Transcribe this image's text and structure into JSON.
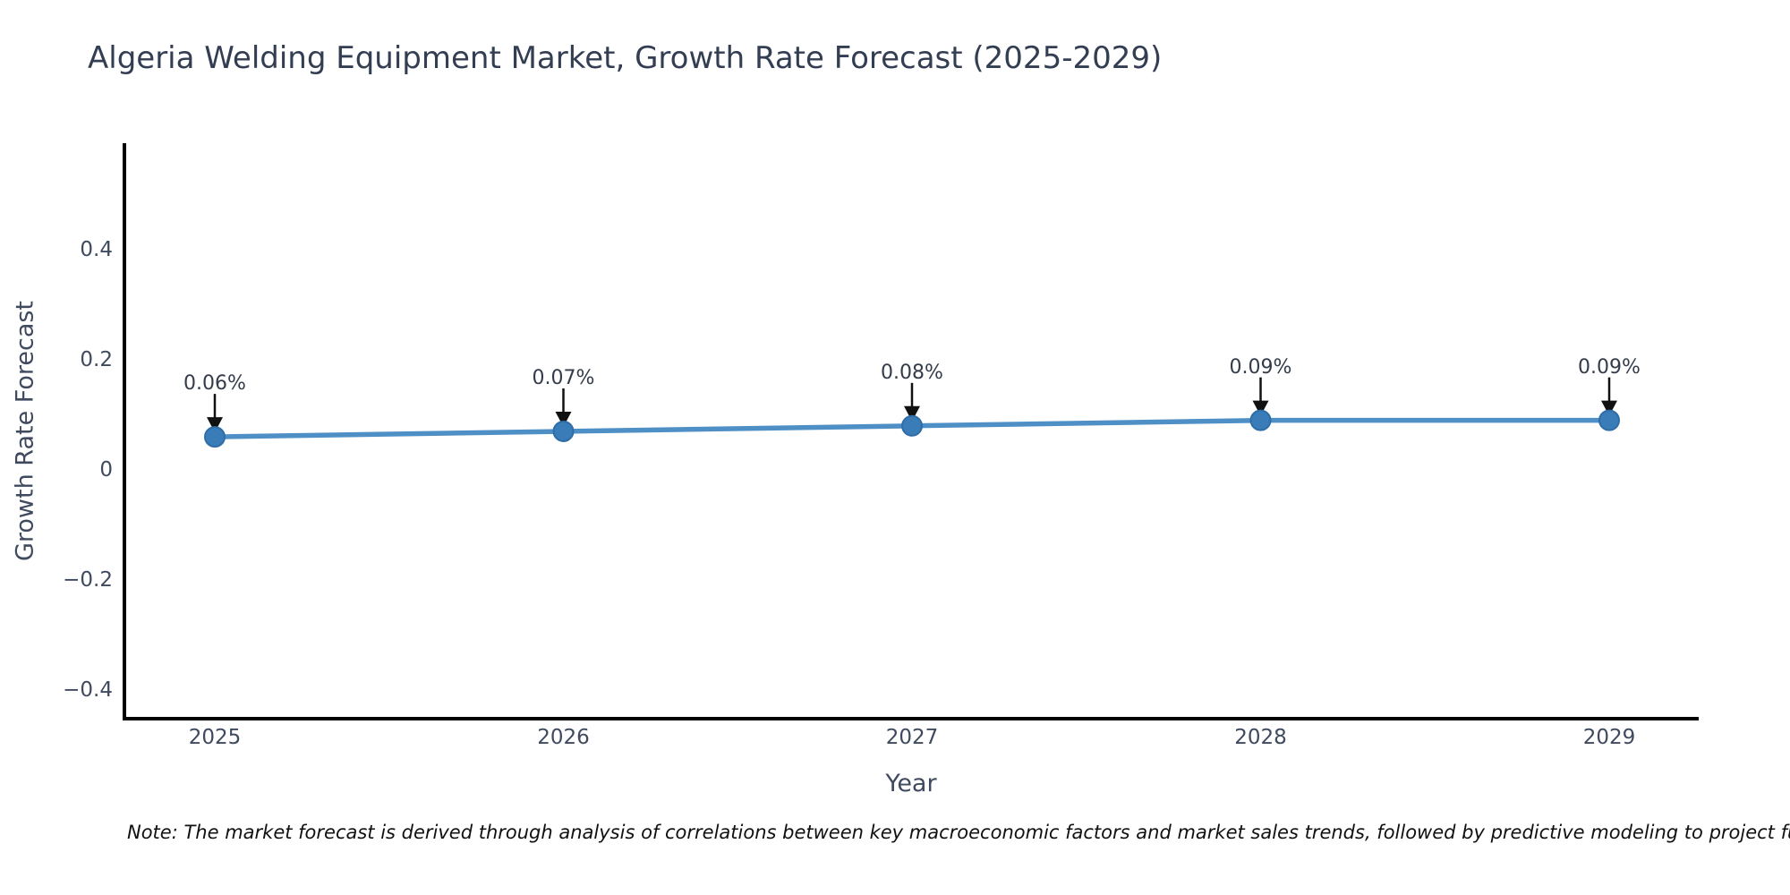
{
  "title": "Algeria Welding Equipment Market, Growth Rate Forecast (2025-2029)",
  "note": "Note: The market forecast is derived through analysis of correlations between key macroeconomic factors and market sales trends, followed by predictive modeling to project future sa",
  "chart_data": {
    "type": "line",
    "title": "Algeria Welding Equipment Market, Growth Rate Forecast (2025-2029)",
    "xlabel": "Year",
    "ylabel": "Growth Rate Forecast",
    "x": [
      2025,
      2026,
      2027,
      2028,
      2029
    ],
    "values": [
      0.06,
      0.07,
      0.08,
      0.09,
      0.09
    ],
    "point_labels": [
      "0.06%",
      "0.07%",
      "0.08%",
      "0.09%",
      "0.09%"
    ],
    "xtick_labels": [
      "2025",
      "2026",
      "2027",
      "2028",
      "2029"
    ],
    "yticks": [
      0.4,
      0.2,
      0,
      -0.2,
      -0.4
    ],
    "ytick_labels": [
      "0.4",
      "0.2",
      "0",
      "−0.2",
      "−0.4"
    ],
    "ylim": [
      -0.45,
      0.59
    ],
    "grid": false,
    "legend": "none",
    "annotation_style": "down-arrow",
    "colors": {
      "line": "#4e8fc6",
      "marker": "#3a7cb8",
      "marker_edge": "#2e6da6",
      "arrow": "#111111",
      "spine": "#000000",
      "title_text": "#333e53",
      "tick_text": "#3f4a5f",
      "note_text": "#111111",
      "background": "#ffffff"
    }
  }
}
